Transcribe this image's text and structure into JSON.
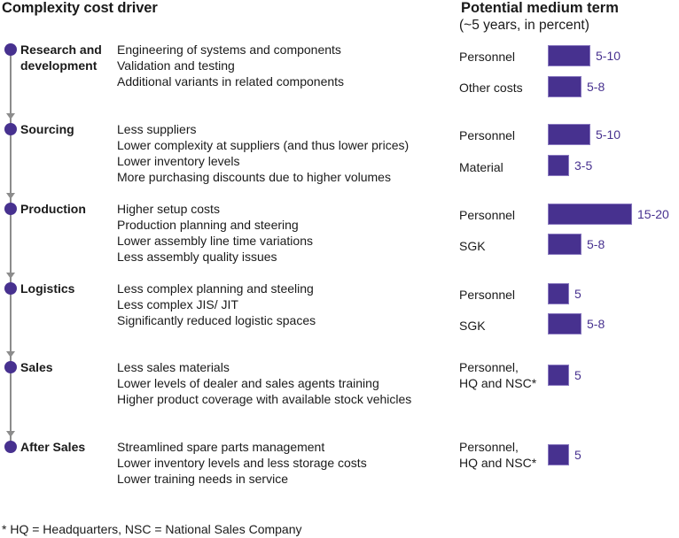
{
  "header": {
    "left_title": "Complexity cost driver",
    "right_title": "Potential medium term",
    "right_subtitle": "(~5 years, in percent)"
  },
  "colors": {
    "accent": "#47318f",
    "timeline": "#8c8c8c",
    "text": "#1a1a1a"
  },
  "stages": [
    {
      "name_lines": [
        "Research and",
        "development"
      ],
      "items": [
        "Engineering of systems and components",
        "Validation and testing",
        "Additional variants in related components"
      ],
      "bars": [
        {
          "label_lines": [
            "Personnel"
          ],
          "value_label": "5-10",
          "low": 5,
          "high": 10
        },
        {
          "label_lines": [
            "Other costs"
          ],
          "value_label": "5-8",
          "low": 5,
          "high": 8
        }
      ]
    },
    {
      "name_lines": [
        "Sourcing"
      ],
      "items": [
        "Less suppliers",
        "Lower complexity at suppliers (and thus lower prices)",
        "Lower inventory levels",
        "More purchasing discounts due to higher volumes"
      ],
      "bars": [
        {
          "label_lines": [
            "Personnel"
          ],
          "value_label": "5-10",
          "low": 5,
          "high": 10
        },
        {
          "label_lines": [
            "Material"
          ],
          "value_label": "3-5",
          "low": 3,
          "high": 5
        }
      ]
    },
    {
      "name_lines": [
        "Production"
      ],
      "items": [
        "Higher setup costs",
        "Production planning and steering",
        "Lower assembly line time variations",
        "Less assembly quality issues"
      ],
      "bars": [
        {
          "label_lines": [
            "Personnel"
          ],
          "value_label": "15-20",
          "low": 15,
          "high": 20
        },
        {
          "label_lines": [
            "SGK"
          ],
          "value_label": "5-8",
          "low": 5,
          "high": 8
        }
      ]
    },
    {
      "name_lines": [
        "Logistics"
      ],
      "items": [
        "Less complex planning and steeling",
        "Less complex JIS/ JIT",
        "Significantly reduced logistic spaces"
      ],
      "bars": [
        {
          "label_lines": [
            "Personnel"
          ],
          "value_label": "5",
          "low": 5,
          "high": 5
        },
        {
          "label_lines": [
            "SGK"
          ],
          "value_label": "5-8",
          "low": 5,
          "high": 8
        }
      ]
    },
    {
      "name_lines": [
        "Sales"
      ],
      "items": [
        "Less sales materials",
        "Lower levels of dealer and sales agents training",
        "Higher product coverage with available stock vehicles"
      ],
      "bars": [
        {
          "label_lines": [
            "Personnel,",
            "HQ and NSC*"
          ],
          "value_label": "5",
          "low": 5,
          "high": 5
        }
      ]
    },
    {
      "name_lines": [
        "After Sales"
      ],
      "items": [
        "Streamlined spare parts management",
        "Lower inventory levels and less storage costs",
        "Lower training needs in service"
      ],
      "bars": [
        {
          "label_lines": [
            "Personnel,",
            "HQ and NSC*"
          ],
          "value_label": "5",
          "low": 5,
          "high": 5
        }
      ]
    }
  ],
  "footnote": "* HQ = Headquarters, NSC = National Sales Company",
  "chart_data": {
    "type": "bar",
    "orientation": "horizontal",
    "title": "Potential medium term",
    "subtitle": "(~5 years, in percent)",
    "xlabel": "",
    "ylabel": "",
    "grid": false,
    "legend": "none",
    "xlim": [
      0,
      20
    ],
    "categories": [
      "Research and development - Personnel",
      "Research and development - Other costs",
      "Sourcing - Personnel",
      "Sourcing - Material",
      "Production - Personnel",
      "Production - SGK",
      "Logistics - Personnel",
      "Logistics - SGK",
      "Sales - Personnel, HQ and NSC*",
      "After Sales - Personnel, HQ and NSC*"
    ],
    "values": [
      10,
      8,
      10,
      5,
      20,
      8,
      5,
      8,
      5,
      5
    ],
    "ranges": [
      [
        5,
        10
      ],
      [
        5,
        8
      ],
      [
        5,
        10
      ],
      [
        3,
        5
      ],
      [
        15,
        20
      ],
      [
        5,
        8
      ],
      [
        5,
        5
      ],
      [
        5,
        8
      ],
      [
        5,
        5
      ],
      [
        5,
        5
      ]
    ],
    "data_labels": [
      "5-10",
      "5-8",
      "5-10",
      "3-5",
      "15-20",
      "5-8",
      "5",
      "5-8",
      "5",
      "5"
    ]
  }
}
